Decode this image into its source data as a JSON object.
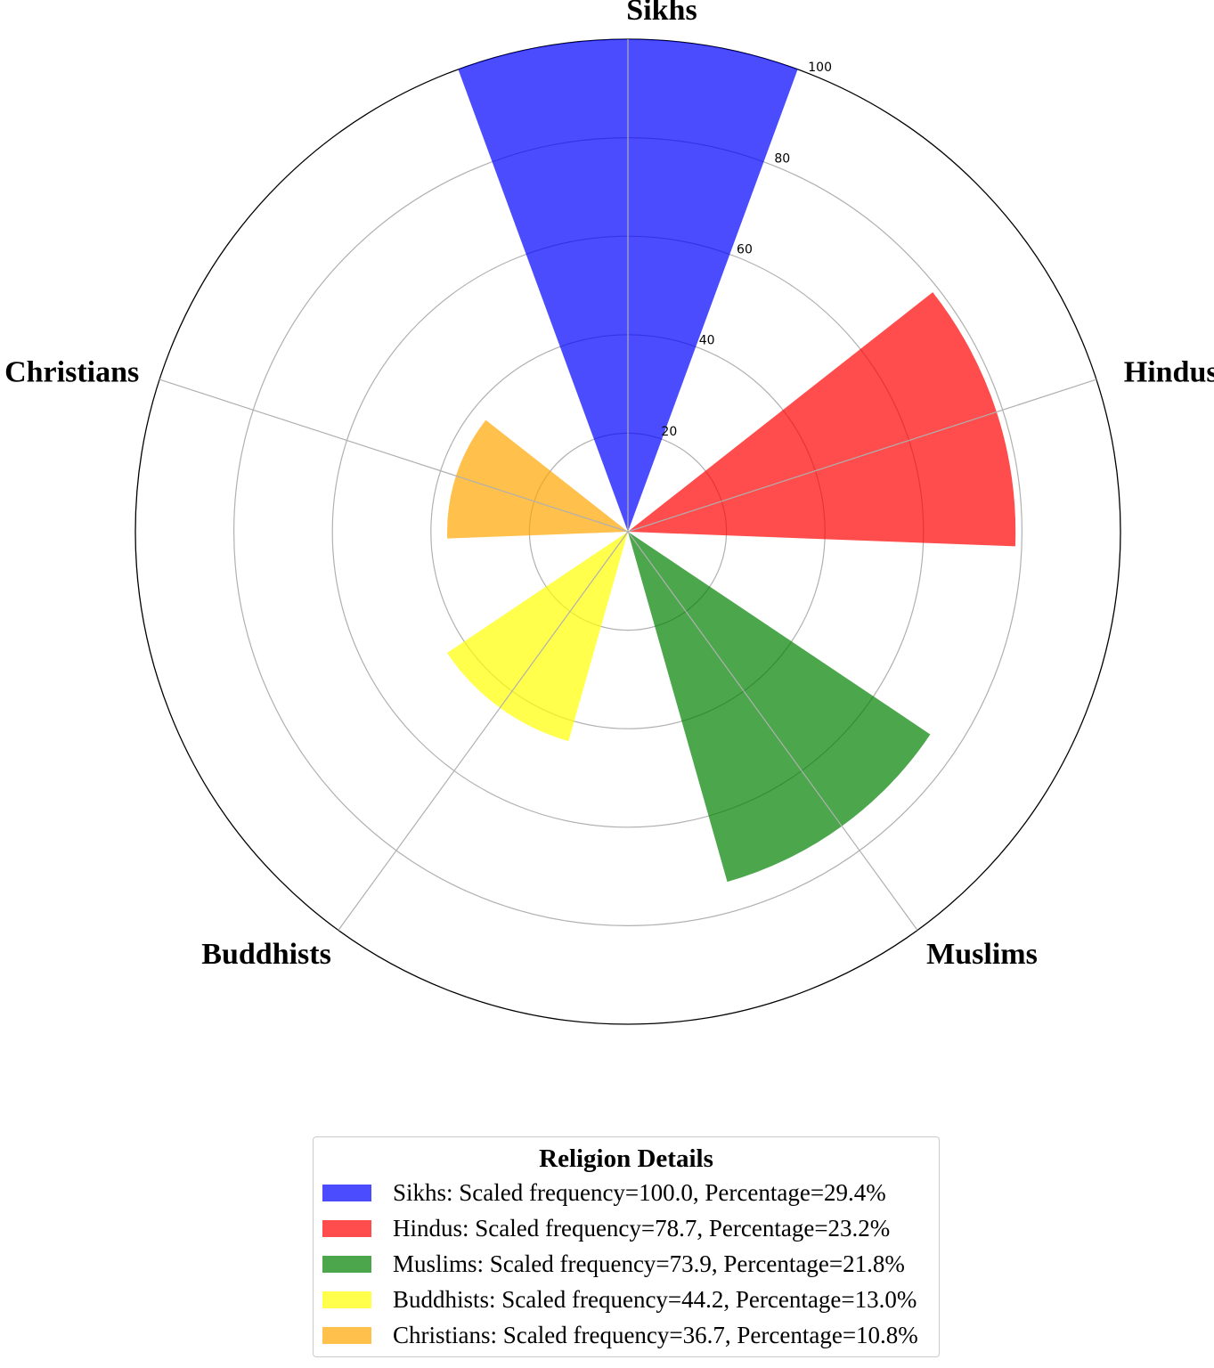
{
  "chart_data": {
    "type": "polar-bar",
    "categories": [
      "Sikhs",
      "Hindus",
      "Muslims",
      "Buddhists",
      "Christians"
    ],
    "values": [
      100.0,
      78.7,
      73.9,
      44.2,
      36.7
    ],
    "percentages": [
      29.4,
      23.2,
      21.8,
      13.0,
      10.8
    ],
    "colors": [
      "#0000ff",
      "#ff0000",
      "#008000",
      "#ffff00",
      "#ffa500"
    ],
    "bar_opacity": 0.7,
    "rlim": [
      0,
      100
    ],
    "rticks": [
      "20",
      "40",
      "60",
      "80",
      "100"
    ],
    "grid": true,
    "legend": {
      "title": "Religion Details",
      "placement": "bottom-center",
      "entries": [
        "Sikhs: Scaled frequency=100.0, Percentage=29.4%",
        "Hindus: Scaled frequency=78.7, Percentage=23.2%",
        "Muslims: Scaled frequency=73.9, Percentage=21.8%",
        "Buddhists: Scaled frequency=44.2, Percentage=13.0%",
        "Christians: Scaled frequency=36.7, Percentage=10.8%"
      ]
    }
  }
}
